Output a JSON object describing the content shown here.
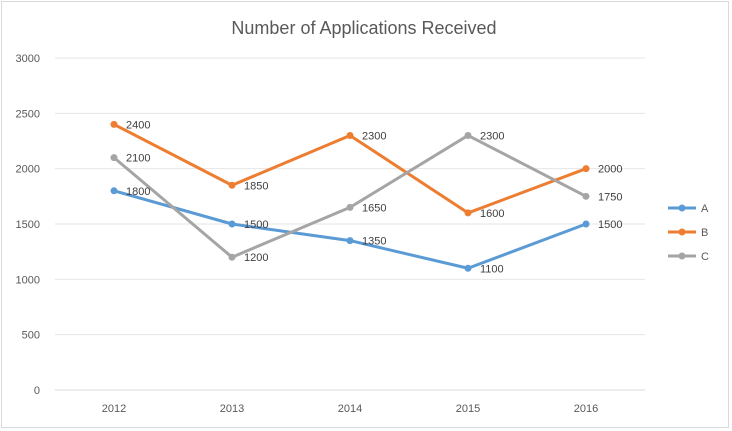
{
  "chart_data": {
    "type": "line",
    "title": "Number of Applications Received",
    "xlabel": "",
    "ylabel": "",
    "x": [
      "2012",
      "2013",
      "2014",
      "2015",
      "2016"
    ],
    "ylim": [
      0,
      3000
    ],
    "yticks": [
      0,
      500,
      1000,
      1500,
      2000,
      2500,
      3000
    ],
    "grid": true,
    "legend_position": "right",
    "series": [
      {
        "name": "A",
        "color": "#5b9bd5",
        "values": [
          1800,
          1500,
          1350,
          1100,
          1500
        ]
      },
      {
        "name": "B",
        "color": "#ed7d31",
        "values": [
          2400,
          1850,
          2300,
          1600,
          2000
        ]
      },
      {
        "name": "C",
        "color": "#a5a5a5",
        "values": [
          2100,
          1200,
          1650,
          2300,
          1750
        ]
      }
    ]
  }
}
